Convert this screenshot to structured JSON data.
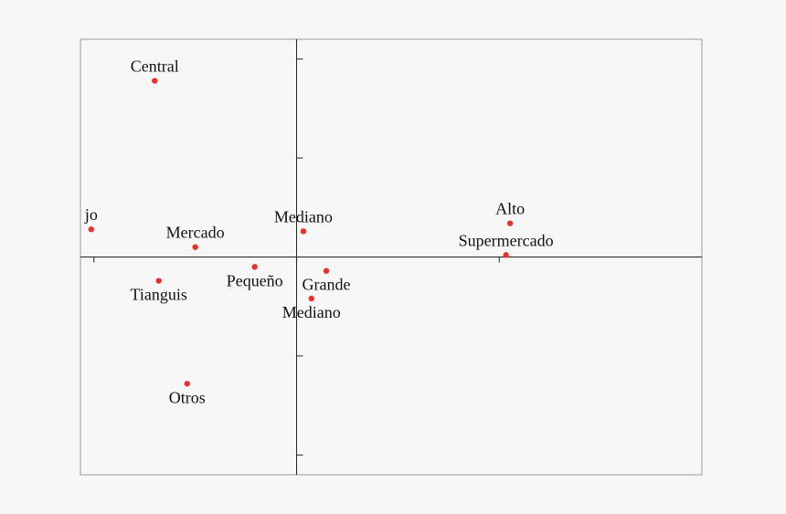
{
  "chart_data": {
    "type": "scatter",
    "title": "",
    "xlabel": "",
    "ylabel": "",
    "xlim": [
      -1.6,
      3.0
    ],
    "ylim": [
      -1.1,
      1.1
    ],
    "grid": false,
    "point_color": "#e8312a",
    "frame_color": "#999999",
    "axis_color": "#222222",
    "points": [
      {
        "label": "Central",
        "x": -1.05,
        "y": 0.89,
        "label_pos": "above"
      },
      {
        "label": "jo",
        "x": -1.52,
        "y": 0.14,
        "label_pos": "above"
      },
      {
        "label": "Mercado",
        "x": -0.75,
        "y": 0.05,
        "label_pos": "above"
      },
      {
        "label": "Mediano",
        "x": 0.05,
        "y": 0.13,
        "label_pos": "above"
      },
      {
        "label": "Alto",
        "x": 1.58,
        "y": 0.17,
        "label_pos": "above"
      },
      {
        "label": "Supermercado",
        "x": 1.55,
        "y": 0.01,
        "label_pos": "above"
      },
      {
        "label": "Tianguis",
        "x": -1.02,
        "y": -0.12,
        "label_pos": "below"
      },
      {
        "label": "Pequeño",
        "x": -0.31,
        "y": -0.05,
        "label_pos": "below"
      },
      {
        "label": "Grande",
        "x": 0.22,
        "y": -0.07,
        "label_pos": "below"
      },
      {
        "label": "Mediano",
        "x": 0.11,
        "y": -0.21,
        "label_pos": "below"
      },
      {
        "label": "Otros",
        "x": -0.81,
        "y": -0.64,
        "label_pos": "below"
      }
    ]
  }
}
